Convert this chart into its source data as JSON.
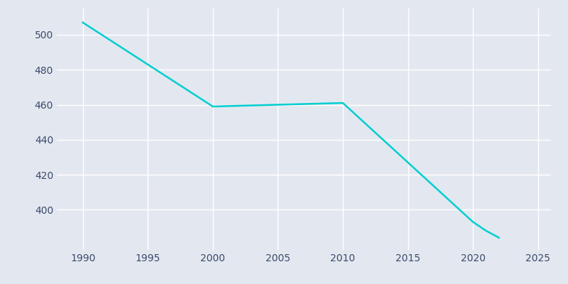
{
  "years": [
    1990,
    2000,
    2010,
    2020,
    2021,
    2022
  ],
  "population": [
    507,
    459,
    461,
    393,
    388,
    384
  ],
  "line_color": "#00CED1",
  "background_color": "#E3E8F0",
  "grid_color": "#FFFFFF",
  "text_color": "#3B4A6B",
  "xlim": [
    1988,
    2026
  ],
  "ylim": [
    377,
    515
  ],
  "xticks": [
    1990,
    1995,
    2000,
    2005,
    2010,
    2015,
    2020,
    2025
  ],
  "yticks": [
    400,
    420,
    440,
    460,
    480,
    500
  ],
  "line_width": 1.8,
  "figsize": [
    8.0,
    4.0
  ],
  "dpi": 100
}
